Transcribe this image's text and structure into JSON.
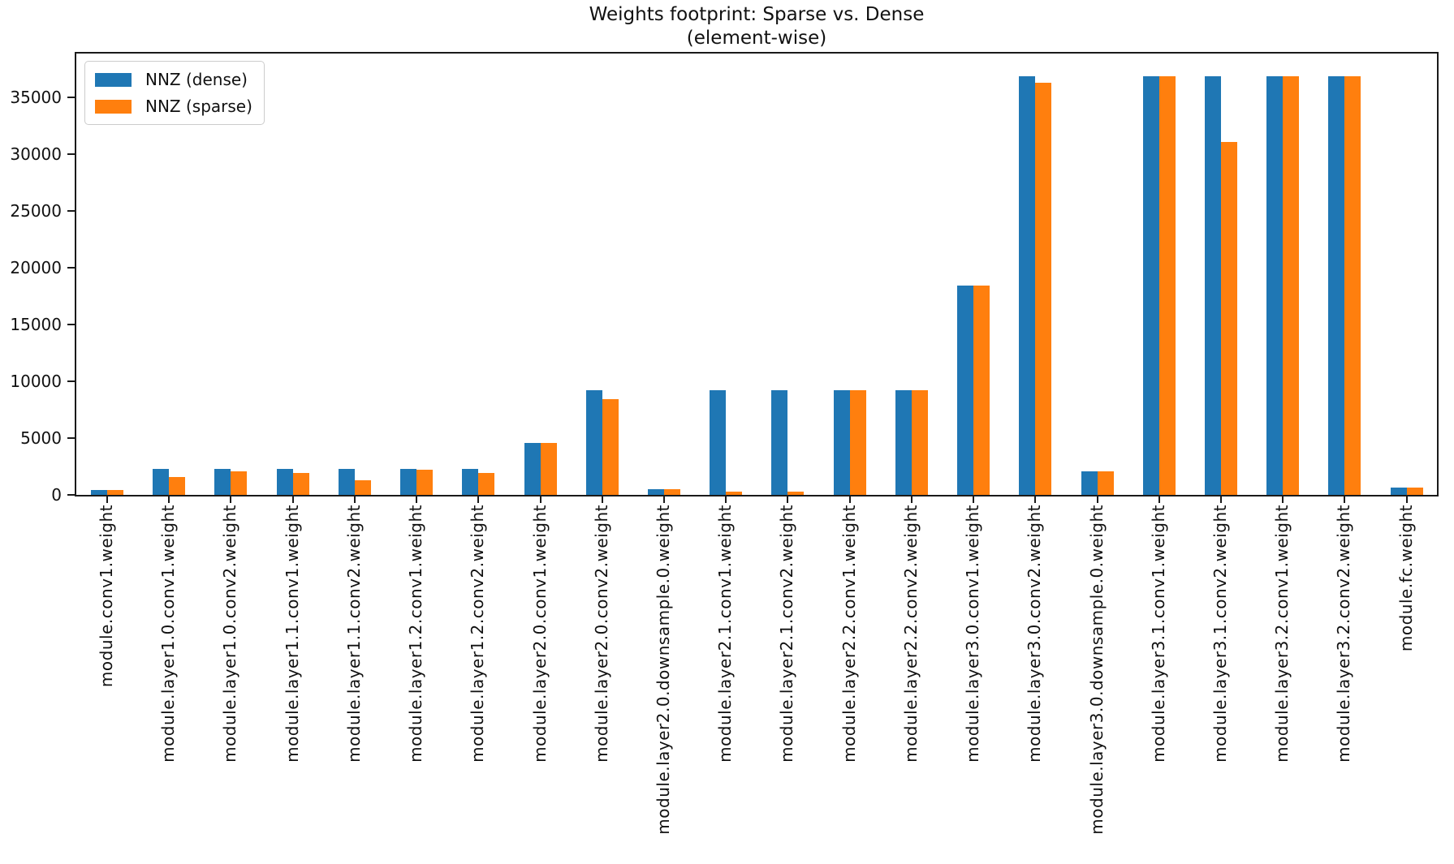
{
  "title": {
    "line1": "Weights footprint: Sparse vs. Dense",
    "line2": "(element-wise)"
  },
  "colors": {
    "dense": "#1f77b4",
    "sparse": "#ff7f0e",
    "axis": "#1a1a1a",
    "legend_border": "#cccccc"
  },
  "chart_data": {
    "type": "bar",
    "title": "Weights footprint: Sparse vs. Dense\n(element-wise)",
    "xlabel": "",
    "ylabel": "",
    "grid": false,
    "legend_position": "upper left",
    "ylim": [
      0,
      38857
    ],
    "yticks": [
      0,
      5000,
      10000,
      15000,
      20000,
      25000,
      30000,
      35000
    ],
    "categories": [
      "module.conv1.weight",
      "module.layer1.0.conv1.weight",
      "module.layer1.0.conv2.weight",
      "module.layer1.1.conv1.weight",
      "module.layer1.1.conv2.weight",
      "module.layer1.2.conv1.weight",
      "module.layer1.2.conv2.weight",
      "module.layer2.0.conv1.weight",
      "module.layer2.0.conv2.weight",
      "module.layer2.0.downsample.0.weight",
      "module.layer2.1.conv1.weight",
      "module.layer2.1.conv2.weight",
      "module.layer2.2.conv1.weight",
      "module.layer2.2.conv2.weight",
      "module.layer3.0.conv1.weight",
      "module.layer3.0.conv2.weight",
      "module.layer3.0.downsample.0.weight",
      "module.layer3.1.conv1.weight",
      "module.layer3.1.conv2.weight",
      "module.layer3.2.conv1.weight",
      "module.layer3.2.conv2.weight",
      "module.fc.weight"
    ],
    "series": [
      {
        "name": "NNZ (dense)",
        "color": "#1f77b4",
        "values": [
          432,
          2304,
          2304,
          2304,
          2304,
          2304,
          2304,
          4608,
          9216,
          512,
          9216,
          9216,
          9216,
          9216,
          18432,
          36864,
          2048,
          36864,
          36864,
          36864,
          36864,
          640
        ]
      },
      {
        "name": "NNZ (sparse)",
        "color": "#ff7f0e",
        "values": [
          432,
          1600,
          2060,
          1900,
          1310,
          2190,
          1920,
          4608,
          8400,
          512,
          300,
          300,
          9216,
          9216,
          18432,
          36300,
          2048,
          36864,
          31100,
          36864,
          36864,
          640
        ]
      }
    ]
  }
}
